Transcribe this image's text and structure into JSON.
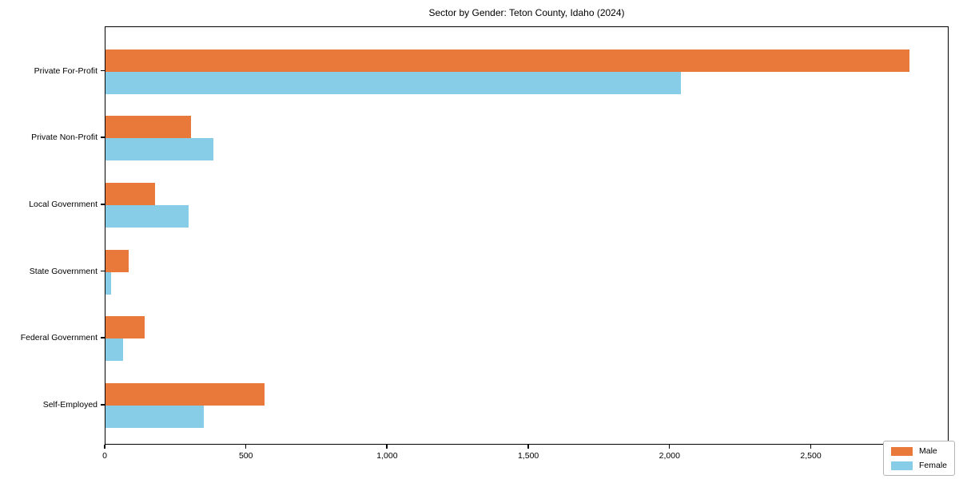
{
  "chart_data": {
    "type": "bar",
    "orientation": "horizontal",
    "title": "Sector by Gender: Teton County, Idaho (2024)",
    "categories": [
      "Private For-Profit",
      "Private Non-Profit",
      "Local Government",
      "State Government",
      "Federal Government",
      "Self-Employed"
    ],
    "series": [
      {
        "name": "Male",
        "color": "#e8793a",
        "values": [
          2846,
          303,
          174,
          81,
          139,
          564
        ]
      },
      {
        "name": "Female",
        "color": "#87cde8",
        "values": [
          2036,
          382,
          294,
          21,
          61,
          349
        ]
      }
    ],
    "xlabel": "",
    "ylabel": "",
    "xlim": [
      0,
      2988
    ],
    "xticks": {
      "values": [
        0,
        500,
        1000,
        1500,
        2000,
        2500
      ],
      "labels": [
        "0",
        "500",
        "1,000",
        "1,500",
        "2,000",
        "2,500"
      ]
    },
    "grid": false,
    "legend": {
      "position": "lower right",
      "entries": [
        "Male",
        "Female"
      ]
    }
  }
}
